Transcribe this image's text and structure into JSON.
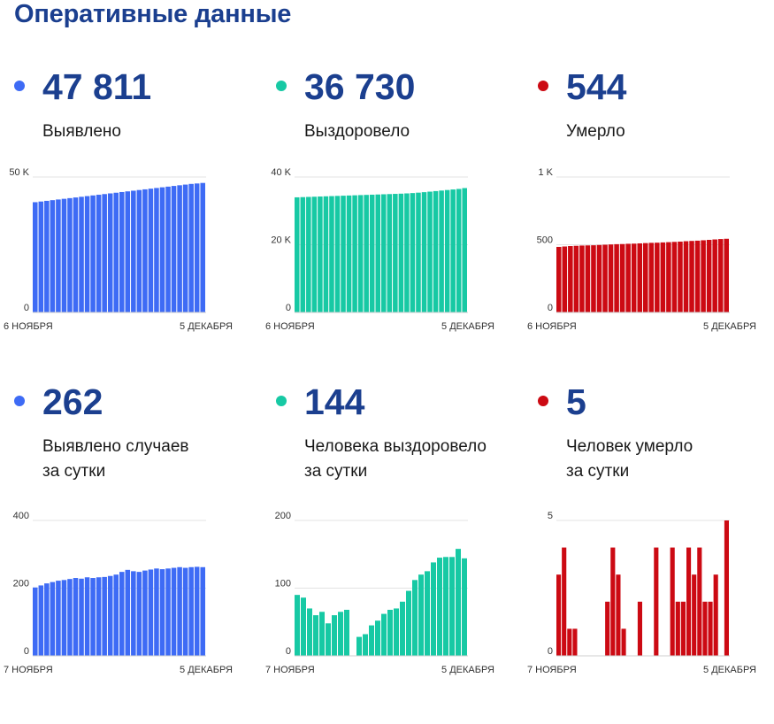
{
  "page_title": "Оперативные данные",
  "colors": {
    "blue": "#3e6bf5",
    "teal": "#17c9a4",
    "red": "#cc0a13",
    "title": "#1b3f8f"
  },
  "cards": [
    {
      "value": "47 811",
      "label1": "Выявлено",
      "label2": "",
      "color": "blue"
    },
    {
      "value": "36 730",
      "label1": "Выздоровело",
      "label2": "",
      "color": "teal"
    },
    {
      "value": "544",
      "label1": "Умерло",
      "label2": "",
      "color": "red"
    },
    {
      "value": "262",
      "label1": "Выявлено случаев",
      "label2": "за сутки",
      "color": "blue"
    },
    {
      "value": "144",
      "label1": "Человека выздоровело",
      "label2": "за сутки",
      "color": "teal"
    },
    {
      "value": "5",
      "label1": "Человек умерло",
      "label2": "за сутки",
      "color": "red"
    }
  ],
  "chart_data": [
    {
      "type": "bar",
      "ylim": [
        0,
        50000
      ],
      "yticks": [
        {
          "value": 0,
          "label": "0"
        },
        {
          "value": 50000,
          "label": "50 K"
        }
      ],
      "xlabel_start": "6 НОЯБРЯ",
      "xlabel_end": "5 ДЕКАБРЯ",
      "values": [
        40700,
        40950,
        41200,
        41450,
        41700,
        41950,
        42200,
        42450,
        42700,
        42950,
        43200,
        43450,
        43700,
        43950,
        44200,
        44450,
        44700,
        44950,
        45200,
        45450,
        45700,
        45950,
        46200,
        46450,
        46700,
        46950,
        47200,
        47450,
        47611,
        47811
      ]
    },
    {
      "type": "bar",
      "ylim": [
        0,
        40000
      ],
      "yticks": [
        {
          "value": 0,
          "label": "0"
        },
        {
          "value": 20000,
          "label": "20 K"
        },
        {
          "value": 40000,
          "label": "40 K"
        }
      ],
      "xlabel_start": "6 НОЯБРЯ",
      "xlabel_end": "5 ДЕКАБРЯ",
      "values": [
        34000,
        34060,
        34120,
        34180,
        34240,
        34300,
        34360,
        34420,
        34480,
        34540,
        34600,
        34660,
        34720,
        34780,
        34840,
        34900,
        34960,
        35020,
        35080,
        35160,
        35260,
        35380,
        35520,
        35680,
        35840,
        36000,
        36160,
        36320,
        36480,
        36730
      ]
    },
    {
      "type": "bar",
      "ylim": [
        0,
        1000
      ],
      "yticks": [
        {
          "value": 0,
          "label": "0"
        },
        {
          "value": 500,
          "label": "500"
        },
        {
          "value": 1000,
          "label": "1 K"
        }
      ],
      "xlabel_start": "6 НОЯБРЯ",
      "xlabel_end": "5 ДЕКАБРЯ",
      "values": [
        484,
        487,
        490,
        492,
        494,
        495,
        496,
        498,
        500,
        502,
        504,
        505,
        507,
        508,
        510,
        512,
        514,
        515,
        517,
        519,
        521,
        523,
        526,
        528,
        530,
        533,
        536,
        539,
        542,
        544
      ]
    },
    {
      "type": "bar",
      "ylim": [
        0,
        400
      ],
      "yticks": [
        {
          "value": 0,
          "label": "0"
        },
        {
          "value": 200,
          "label": "200"
        },
        {
          "value": 400,
          "label": "400"
        }
      ],
      "xlabel_start": "7 НОЯБРЯ",
      "xlabel_end": "5 ДЕКАБРЯ",
      "values": [
        202,
        208,
        214,
        218,
        222,
        224,
        227,
        230,
        228,
        232,
        230,
        232,
        233,
        236,
        240,
        248,
        254,
        250,
        248,
        252,
        255,
        258,
        256,
        258,
        260,
        262,
        260,
        262,
        263,
        262
      ]
    },
    {
      "type": "bar",
      "ylim": [
        0,
        200
      ],
      "yticks": [
        {
          "value": 0,
          "label": "0"
        },
        {
          "value": 100,
          "label": "100"
        },
        {
          "value": 200,
          "label": "200"
        }
      ],
      "xlabel_start": "7 НОЯБРЯ",
      "xlabel_end": "5 ДЕКАБРЯ",
      "values": [
        90,
        86,
        70,
        60,
        65,
        48,
        60,
        65,
        68,
        0,
        28,
        32,
        45,
        52,
        62,
        68,
        70,
        80,
        96,
        112,
        120,
        125,
        138,
        145,
        146,
        146,
        158,
        144
      ]
    },
    {
      "type": "bar",
      "ylim": [
        0,
        5
      ],
      "yticks": [
        {
          "value": 0,
          "label": "0"
        },
        {
          "value": 5,
          "label": "5"
        }
      ],
      "xlabel_start": "7 НОЯБРЯ",
      "xlabel_end": "5 ДЕКАБРЯ",
      "values": [
        3,
        4,
        1,
        1,
        0,
        0,
        0,
        0,
        0,
        2,
        4,
        3,
        1,
        0,
        0,
        2,
        0,
        0,
        4,
        0,
        0,
        4,
        2,
        2,
        4,
        3,
        4,
        2,
        2,
        3,
        0,
        5
      ]
    }
  ]
}
